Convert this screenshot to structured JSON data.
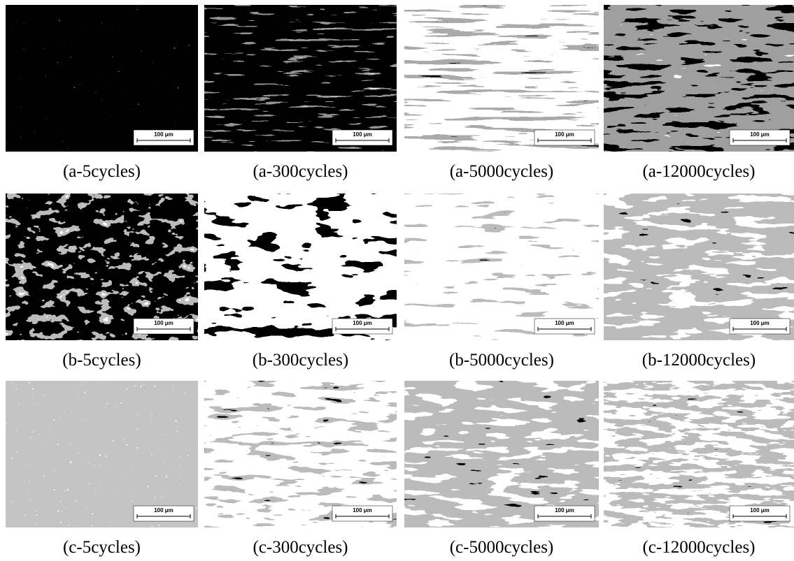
{
  "panels": [
    {
      "caption": "(a-5cycles)"
    },
    {
      "caption": "(a-300cycles)"
    },
    {
      "caption": "(a-5000cycles)"
    },
    {
      "caption": "(a-12000cycles)"
    },
    {
      "caption": "(b-5cycles)"
    },
    {
      "caption": "(b-300cycles)"
    },
    {
      "caption": "(b-5000cycles)"
    },
    {
      "caption": "(b-12000cycles)"
    },
    {
      "caption": "(c-5cycles)"
    },
    {
      "caption": "(c-300cycles)"
    },
    {
      "caption": "(c-5000cycles)"
    },
    {
      "caption": "(c-12000cycles)"
    }
  ],
  "scale_bar": "100 μm"
}
